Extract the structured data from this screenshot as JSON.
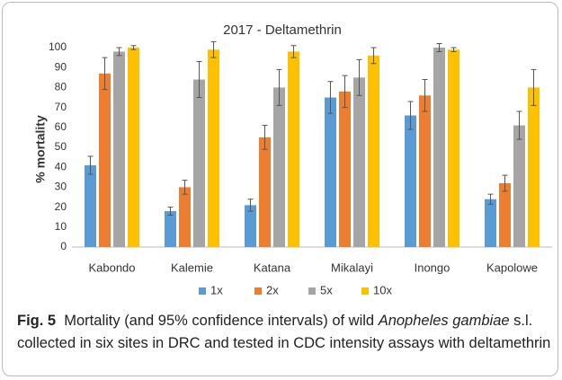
{
  "chart_data": {
    "type": "bar",
    "title": "2017 - Deltamethrin",
    "ylabel": "% mortality",
    "categories": [
      "Kabondo",
      "Kalemie",
      "Katana",
      "Mikalayi",
      "Inongo",
      "Kapolowe"
    ],
    "series": [
      {
        "name": "1x",
        "color": "#5b9bd5",
        "values": [
          41,
          18,
          21,
          75,
          66,
          24
        ],
        "errors": [
          4.5,
          2,
          3,
          8,
          7,
          2.5
        ]
      },
      {
        "name": "2x",
        "color": "#ed7d31",
        "values": [
          87,
          30,
          55,
          78,
          76,
          32
        ],
        "errors": [
          8,
          3.5,
          6,
          8,
          8,
          4
        ]
      },
      {
        "name": "5x",
        "color": "#a5a5a5",
        "values": [
          98,
          84,
          80,
          85,
          100,
          61
        ],
        "errors": [
          2,
          9,
          9,
          9,
          2,
          7
        ]
      },
      {
        "name": "10x",
        "color": "#ffc000",
        "values": [
          100,
          99,
          98,
          96,
          99,
          80
        ],
        "errors": [
          1,
          4,
          3,
          4,
          1,
          9
        ]
      }
    ],
    "ylim": [
      0,
      100
    ],
    "yticks": [
      0,
      10,
      20,
      30,
      40,
      50,
      60,
      70,
      80,
      90,
      100
    ],
    "grid": false,
    "legend": "bottom"
  },
  "caption": {
    "label": "Fig. 5",
    "parts": [
      {
        "text": "Mortality (and 95% confidence intervals) of wild ",
        "italic": false
      },
      {
        "text": "Anopheles gambiae",
        "italic": true
      },
      {
        "text": " s.l. collected in six sites in DRC and tested in CDC intensity assays with deltamethrin",
        "italic": false
      }
    ]
  }
}
